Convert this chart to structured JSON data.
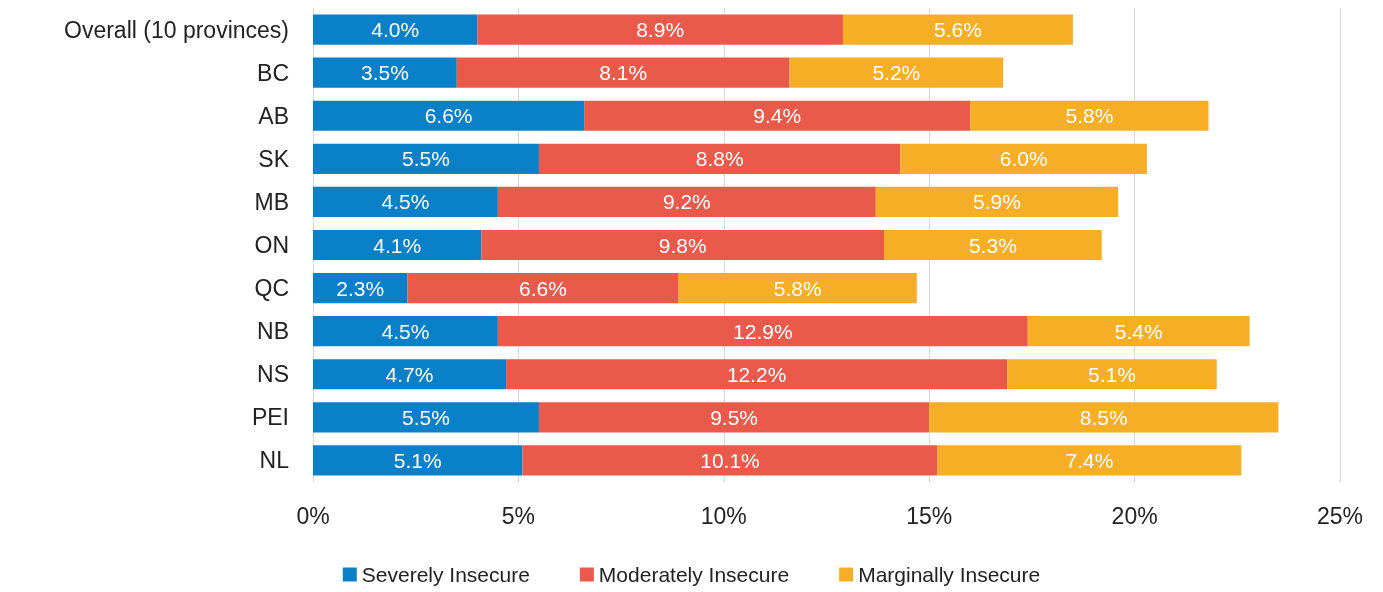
{
  "chart_data": {
    "type": "bar",
    "orientation": "horizontal",
    "stacked": true,
    "categories": [
      "Overall (10 provinces)",
      "BC",
      "AB",
      "SK",
      "MB",
      "ON",
      "QC",
      "NB",
      "NS",
      "PEI",
      "NL"
    ],
    "series": [
      {
        "name": "Severely Insecure",
        "color": "#0a80c8",
        "values": [
          4.0,
          3.5,
          6.6,
          5.5,
          4.5,
          4.1,
          2.3,
          4.5,
          4.7,
          5.5,
          5.1
        ],
        "value_labels": [
          "4.0%",
          "3.5%",
          "6.6%",
          "5.5%",
          "4.5%",
          "4.1%",
          "2.3%",
          "4.5%",
          "4.7%",
          "5.5%",
          "5.1%"
        ]
      },
      {
        "name": "Moderately Insecure",
        "color": "#ea5a4b",
        "values": [
          8.9,
          8.1,
          9.4,
          8.8,
          9.2,
          9.8,
          6.6,
          12.9,
          12.2,
          9.5,
          10.1
        ],
        "value_labels": [
          "8.9%",
          "8.1%",
          "9.4%",
          "8.8%",
          "9.2%",
          "9.8%",
          "6.6%",
          "12.9%",
          "12.2%",
          "9.5%",
          "10.1%"
        ]
      },
      {
        "name": "Marginally Insecure",
        "color": "#f7ae27",
        "values": [
          5.6,
          5.2,
          5.8,
          6.0,
          5.9,
          5.3,
          5.8,
          5.4,
          5.1,
          8.5,
          7.4
        ],
        "value_labels": [
          "5.6%",
          "5.2%",
          "5.8%",
          "6.0%",
          "5.9%",
          "5.3%",
          "5.8%",
          "5.4%",
          "5.1%",
          "8.5%",
          "7.4%"
        ]
      }
    ],
    "xlim": [
      0,
      25
    ],
    "xticks": [
      {
        "value": 0,
        "label": "0%"
      },
      {
        "value": 5,
        "label": "5%"
      },
      {
        "value": 10,
        "label": "10%"
      },
      {
        "value": 15,
        "label": "15%"
      },
      {
        "value": 20,
        "label": "20%"
      },
      {
        "value": 25,
        "label": "25%"
      }
    ],
    "grid": "x",
    "legend": "bottom"
  }
}
